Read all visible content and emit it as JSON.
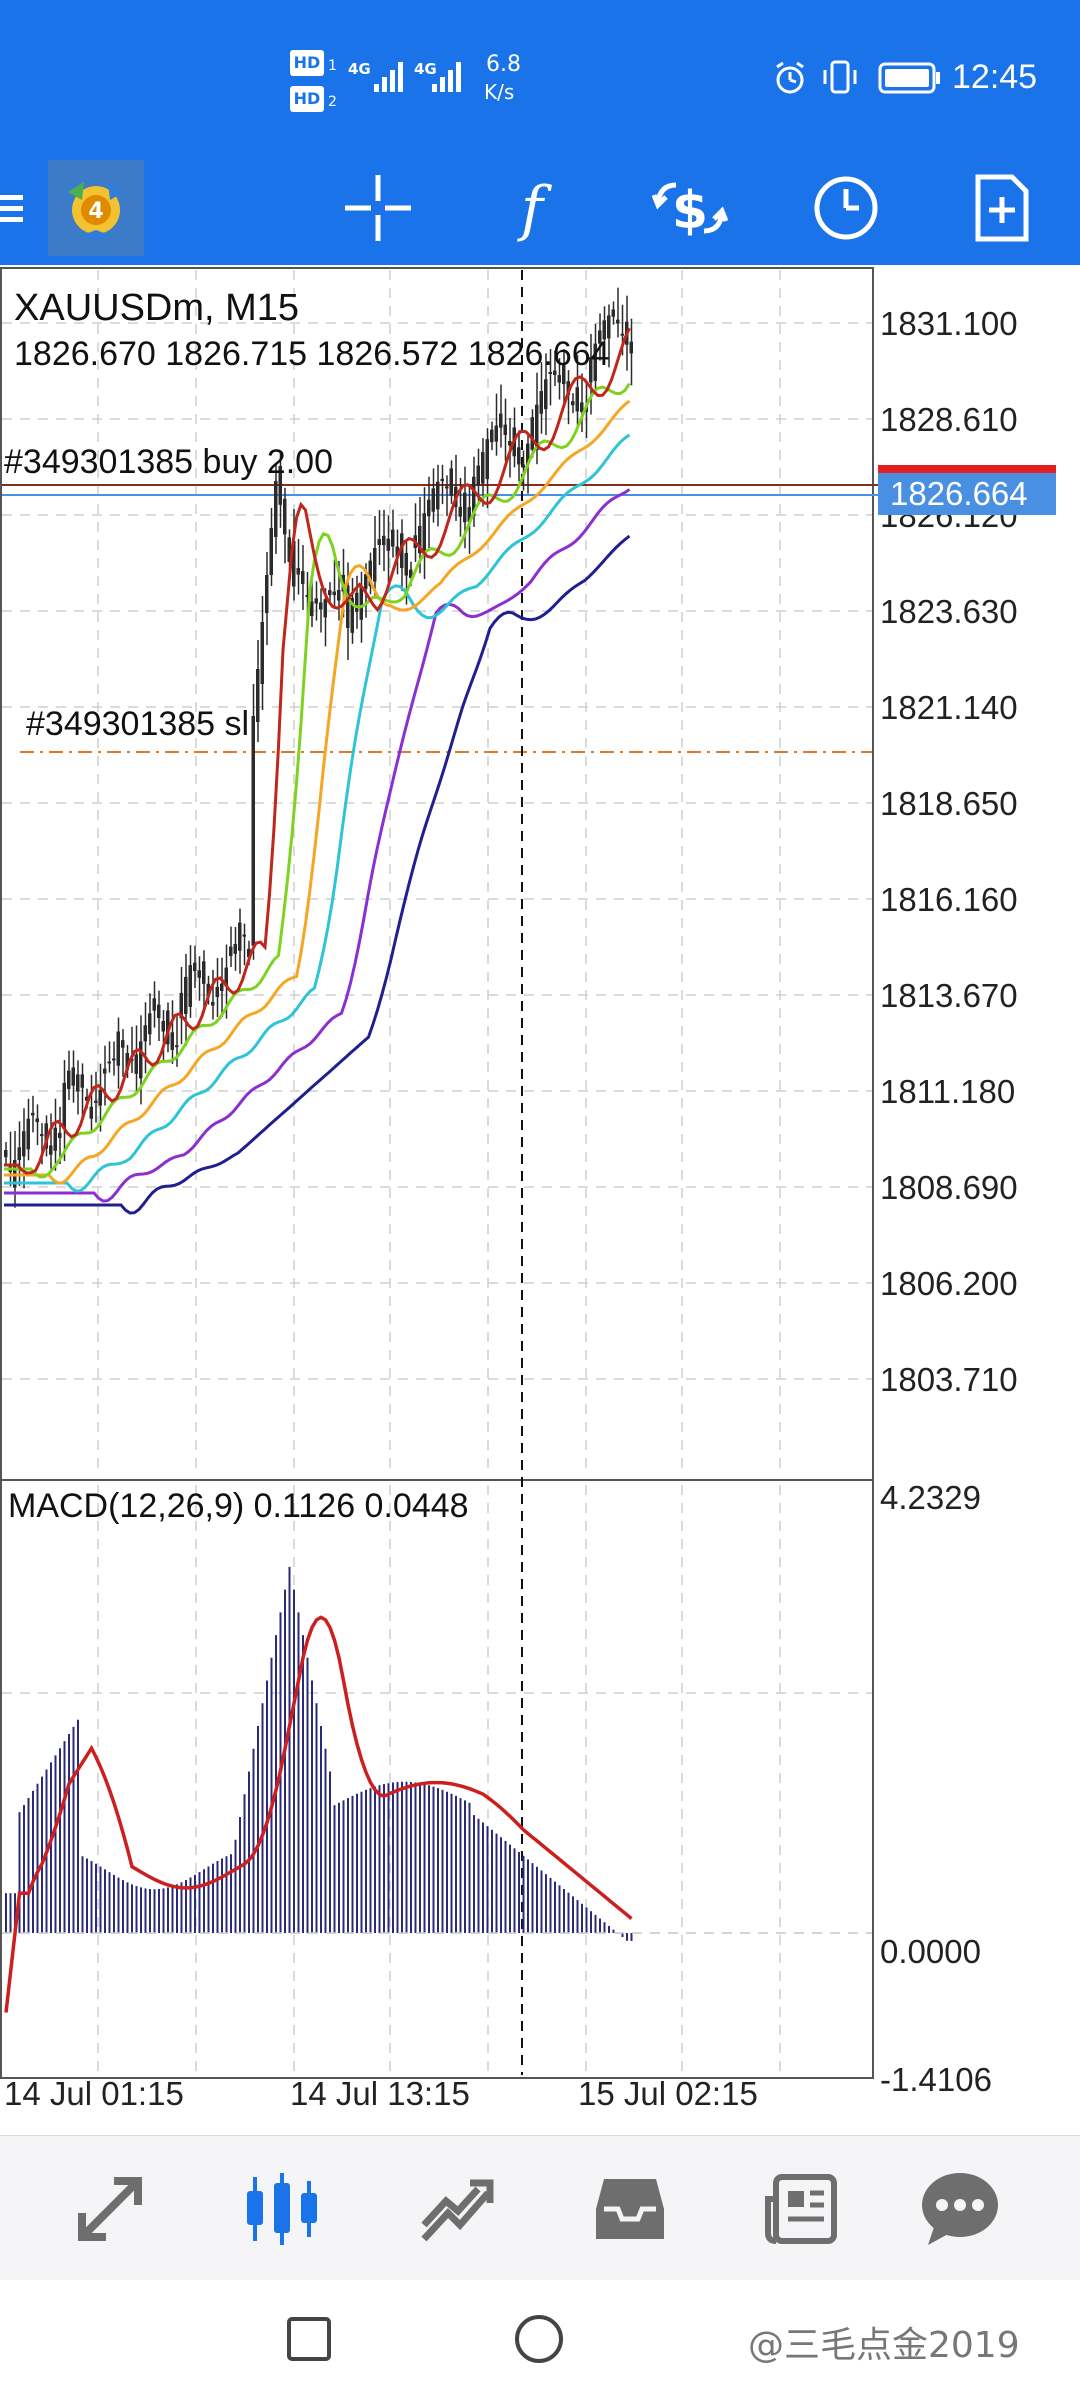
{
  "status": {
    "sim1": "HD",
    "sim1_num": "1",
    "sim2": "HD",
    "sim2_num": "2",
    "net1": "4G",
    "net2": "4G",
    "speed_value": "6.8",
    "speed_unit": "K/s",
    "time": "12:45"
  },
  "toolbar": {
    "icons": [
      "menu-icon",
      "metatrader-logo",
      "crosshair-icon",
      "indicators-icon",
      "trade-icon",
      "timeframe-icon",
      "new-order-icon"
    ]
  },
  "chart": {
    "symbol_timeframe": "XAUUSDm, M15",
    "ohlc": "1826.670 1826.715 1826.572 1826.664",
    "order_buy_label": "#349301385 buy 2.00",
    "order_sl_label": "#349301385 sl",
    "current_price": "1826.664",
    "price_ticks": [
      "1831.100",
      "1828.610",
      "1826.120",
      "1823.630",
      "1821.140",
      "1818.650",
      "1816.160",
      "1813.670",
      "1811.180",
      "1808.690",
      "1806.200",
      "1803.710"
    ],
    "macd_label": "MACD(12,26,9)  0.1126  0.0448",
    "macd_ticks": [
      "4.2329",
      "0.0000",
      "-1.4106"
    ],
    "time_ticks": [
      "14 Jul 01:15",
      "14 Jul 13:15",
      "15 Jul 02:15"
    ],
    "colors": {
      "red_ma": "#c0261b",
      "green_ma": "#7ed321",
      "orange_ma": "#f5a623",
      "cyan_ma": "#2ec4d6",
      "purple_ma": "#8b2fd1",
      "navy_ma": "#1f1f8f",
      "histogram": "#2a2a7a",
      "signal": "#cc1f1f",
      "price_label_bg": "#4a90e2",
      "alert_red": "#e32020"
    }
  },
  "bottom_nav": {
    "items": [
      "quotes-icon",
      "chart-icon",
      "trade-icon",
      "history-icon",
      "news-icon",
      "chat-icon"
    ]
  },
  "system_nav": {
    "watermark": "@三毛点金2019"
  }
}
